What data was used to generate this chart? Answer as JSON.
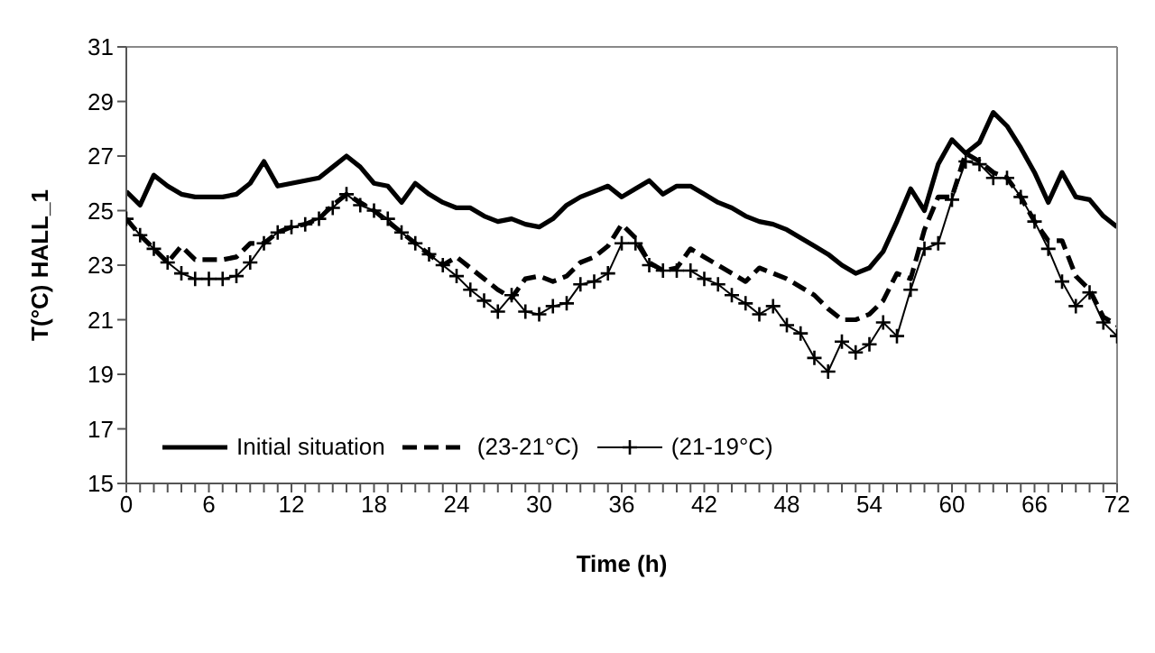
{
  "chart_data": {
    "type": "line",
    "xlabel": "Time (h)",
    "ylabel": "T(°C) HALL_1",
    "x": [
      0,
      1,
      2,
      3,
      4,
      5,
      6,
      7,
      8,
      9,
      10,
      11,
      12,
      13,
      14,
      15,
      16,
      17,
      18,
      19,
      20,
      21,
      22,
      23,
      24,
      25,
      26,
      27,
      28,
      29,
      30,
      31,
      32,
      33,
      34,
      35,
      36,
      37,
      38,
      39,
      40,
      41,
      42,
      43,
      44,
      45,
      46,
      47,
      48,
      49,
      50,
      51,
      52,
      53,
      54,
      55,
      56,
      57,
      58,
      59,
      60,
      61,
      62,
      63,
      64,
      65,
      66,
      67,
      68,
      69,
      70,
      71,
      72
    ],
    "series": [
      {
        "name": "Initial situation",
        "color": "#000000",
        "line_style": "solid",
        "marker": "none",
        "values": [
          25.7,
          25.2,
          26.3,
          25.9,
          25.6,
          25.5,
          25.5,
          25.5,
          25.6,
          26.0,
          26.8,
          25.9,
          26.0,
          26.1,
          26.2,
          26.6,
          27.0,
          26.6,
          26.0,
          25.9,
          25.3,
          26.0,
          25.6,
          25.3,
          25.1,
          25.1,
          24.8,
          24.6,
          24.7,
          24.5,
          24.4,
          24.7,
          25.2,
          25.5,
          25.7,
          25.9,
          25.5,
          25.8,
          26.1,
          25.6,
          25.9,
          25.9,
          25.6,
          25.3,
          25.1,
          24.8,
          24.6,
          24.5,
          24.3,
          24.0,
          23.7,
          23.4,
          23.0,
          22.7,
          22.9,
          23.5,
          24.6,
          25.8,
          25.0,
          26.7,
          27.6,
          27.1,
          27.5,
          28.6,
          28.1,
          27.3,
          26.4,
          25.3,
          26.4,
          25.5,
          25.4,
          24.8,
          24.4
        ]
      },
      {
        "name": "(23-21°C)",
        "color": "#000000",
        "line_style": "dashed",
        "marker": "none",
        "values": [
          24.7,
          24.1,
          23.6,
          23.1,
          23.7,
          23.2,
          23.2,
          23.2,
          23.3,
          23.8,
          23.8,
          24.2,
          24.4,
          24.5,
          24.7,
          25.2,
          25.6,
          25.3,
          25.0,
          24.6,
          24.2,
          23.8,
          23.4,
          23.0,
          23.3,
          22.9,
          22.5,
          22.1,
          21.8,
          22.5,
          22.6,
          22.4,
          22.6,
          23.1,
          23.3,
          23.7,
          24.5,
          24.0,
          23.1,
          22.8,
          22.9,
          23.6,
          23.3,
          23.0,
          22.7,
          22.4,
          22.9,
          22.7,
          22.5,
          22.2,
          21.9,
          21.4,
          21.0,
          21.0,
          21.2,
          21.7,
          22.7,
          22.5,
          24.3,
          25.5,
          25.5,
          27.1,
          26.8,
          26.4,
          26.2,
          25.5,
          24.6,
          23.9,
          23.9,
          22.6,
          22.1,
          21.1,
          20.8
        ]
      },
      {
        "name": "(21-19°C)",
        "color": "#000000",
        "line_style": "solid",
        "marker": "cross",
        "values": [
          24.7,
          24.1,
          23.6,
          23.1,
          22.7,
          22.5,
          22.5,
          22.5,
          22.6,
          23.1,
          23.8,
          24.2,
          24.4,
          24.5,
          24.7,
          25.1,
          25.6,
          25.2,
          25.0,
          24.7,
          24.2,
          23.8,
          23.4,
          23.0,
          22.6,
          22.1,
          21.7,
          21.3,
          21.9,
          21.3,
          21.2,
          21.5,
          21.6,
          22.3,
          22.4,
          22.7,
          23.8,
          23.8,
          23.0,
          22.8,
          22.8,
          22.8,
          22.5,
          22.3,
          21.9,
          21.6,
          21.2,
          21.5,
          20.8,
          20.5,
          19.6,
          19.1,
          20.2,
          19.8,
          20.1,
          20.9,
          20.4,
          22.1,
          23.6,
          23.8,
          25.4,
          26.8,
          26.7,
          26.2,
          26.2,
          25.5,
          24.6,
          23.6,
          22.4,
          21.5,
          22.0,
          20.9,
          20.4
        ]
      }
    ],
    "xlim": [
      0,
      72
    ],
    "xticks": [
      0,
      {
        "value": 1,
        "label": null
      },
      {
        "value": 2,
        "label": null
      },
      {
        "value": 3,
        "label": null
      },
      {
        "value": 4,
        "label": null
      },
      {
        "value": 5,
        "label": null
      },
      6,
      {
        "value": 7,
        "label": null
      },
      {
        "value": 8,
        "label": null
      },
      {
        "value": 9,
        "label": null
      },
      {
        "value": 10,
        "label": null
      },
      {
        "value": 11,
        "label": null
      },
      12,
      {
        "value": 13,
        "label": null
      },
      {
        "value": 14,
        "label": null
      },
      {
        "value": 15,
        "label": null
      },
      {
        "value": 16,
        "label": null
      },
      {
        "value": 17,
        "label": null
      },
      18,
      {
        "value": 19,
        "label": null
      },
      {
        "value": 20,
        "label": null
      },
      {
        "value": 21,
        "label": null
      },
      {
        "value": 22,
        "label": null
      },
      {
        "value": 23,
        "label": null
      },
      24,
      {
        "value": 25,
        "label": null
      },
      {
        "value": 26,
        "label": null
      },
      {
        "value": 27,
        "label": null
      },
      {
        "value": 28,
        "label": null
      },
      {
        "value": 29,
        "label": null
      },
      30,
      {
        "value": 31,
        "label": null
      },
      {
        "value": 32,
        "label": null
      },
      {
        "value": 33,
        "label": null
      },
      {
        "value": 34,
        "label": null
      },
      {
        "value": 35,
        "label": null
      },
      36,
      {
        "value": 37,
        "label": null
      },
      {
        "value": 38,
        "label": null
      },
      {
        "value": 39,
        "label": null
      },
      {
        "value": 40,
        "label": null
      },
      {
        "value": 41,
        "label": null
      },
      42,
      {
        "value": 43,
        "label": null
      },
      {
        "value": 44,
        "label": null
      },
      {
        "value": 45,
        "label": null
      },
      {
        "value": 46,
        "label": null
      },
      {
        "value": 47,
        "label": null
      },
      48,
      {
        "value": 49,
        "label": null
      },
      {
        "value": 50,
        "label": null
      },
      {
        "value": 51,
        "label": null
      },
      {
        "value": 52,
        "label": null
      },
      {
        "value": 53,
        "label": null
      },
      54,
      {
        "value": 55,
        "label": null
      },
      {
        "value": 56,
        "label": null
      },
      {
        "value": 57,
        "label": null
      },
      {
        "value": 58,
        "label": null
      },
      {
        "value": 59,
        "label": null
      },
      60,
      {
        "value": 61,
        "label": null
      },
      {
        "value": 62,
        "label": null
      },
      {
        "value": 63,
        "label": null
      },
      {
        "value": 64,
        "label": null
      },
      {
        "value": 65,
        "label": null
      },
      66,
      {
        "value": 67,
        "label": null
      },
      {
        "value": 68,
        "label": null
      },
      {
        "value": 69,
        "label": null
      },
      {
        "value": 70,
        "label": null
      },
      {
        "value": 71,
        "label": null
      },
      72
    ],
    "ylim": [
      15,
      31
    ],
    "yticks": [
      15,
      17,
      19,
      21,
      23,
      25,
      27,
      29,
      31
    ],
    "grid": false,
    "legend": "bottom left"
  }
}
